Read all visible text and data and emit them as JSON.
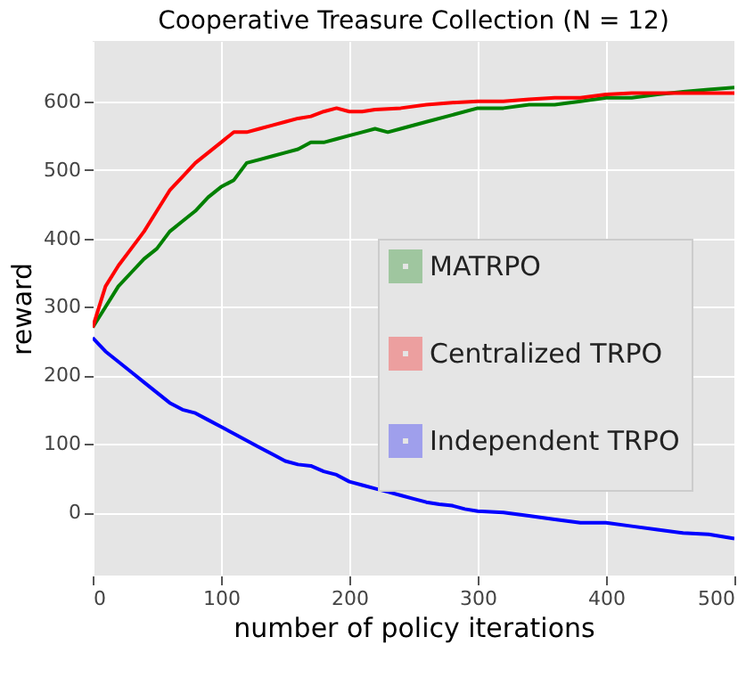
{
  "chart_data": {
    "type": "line",
    "title": "Cooperative Treasure Collection (N = 12)",
    "xlabel": "number of policy iterations",
    "ylabel": "reward",
    "xlim": [
      0,
      500
    ],
    "xticks": [
      0,
      100,
      200,
      300,
      400,
      500
    ],
    "ylim": [
      -92,
      688
    ],
    "yticks": [
      0,
      100,
      200,
      300,
      400,
      500,
      600
    ],
    "grid": true,
    "legend": "right",
    "marker": "none",
    "line_style": "solid",
    "series": [
      {
        "name": "MATRPO",
        "color": "#008000",
        "x": [
          0,
          5,
          10,
          20,
          30,
          40,
          50,
          60,
          70,
          80,
          90,
          100,
          110,
          120,
          130,
          140,
          150,
          160,
          170,
          180,
          190,
          200,
          210,
          220,
          230,
          240,
          260,
          280,
          300,
          320,
          340,
          360,
          380,
          400,
          420,
          440,
          460,
          480,
          500
        ],
        "values": [
          270,
          285,
          300,
          330,
          350,
          370,
          385,
          410,
          425,
          440,
          460,
          475,
          485,
          510,
          515,
          520,
          525,
          530,
          540,
          540,
          545,
          550,
          555,
          560,
          555,
          560,
          570,
          580,
          590,
          590,
          595,
          595,
          600,
          605,
          605,
          610,
          614,
          617,
          620
        ]
      },
      {
        "name": "Centralized TRPO",
        "color": "#ff0000",
        "x": [
          0,
          5,
          10,
          20,
          30,
          40,
          50,
          60,
          70,
          80,
          90,
          100,
          110,
          120,
          130,
          140,
          150,
          160,
          170,
          180,
          190,
          200,
          210,
          220,
          240,
          260,
          280,
          300,
          320,
          340,
          360,
          380,
          400,
          420,
          440,
          460,
          480,
          500
        ],
        "values": [
          270,
          300,
          330,
          360,
          385,
          410,
          440,
          470,
          490,
          510,
          525,
          540,
          555,
          555,
          560,
          565,
          570,
          575,
          578,
          585,
          590,
          585,
          585,
          588,
          590,
          595,
          598,
          600,
          600,
          603,
          605,
          605,
          610,
          612,
          612,
          612,
          612,
          612
        ]
      },
      {
        "name": "Independent TRPO",
        "color": "#0000ff",
        "x": [
          0,
          5,
          10,
          20,
          30,
          40,
          50,
          60,
          70,
          80,
          90,
          100,
          110,
          120,
          130,
          140,
          150,
          160,
          170,
          180,
          190,
          200,
          210,
          220,
          230,
          240,
          250,
          260,
          270,
          280,
          290,
          300,
          320,
          340,
          360,
          380,
          400,
          420,
          440,
          460,
          480,
          500
        ],
        "values": [
          255,
          245,
          235,
          220,
          205,
          190,
          175,
          160,
          150,
          145,
          135,
          125,
          115,
          105,
          95,
          85,
          75,
          70,
          68,
          60,
          55,
          45,
          40,
          35,
          30,
          25,
          20,
          15,
          12,
          10,
          5,
          2,
          0,
          -5,
          -10,
          -15,
          -15,
          -20,
          -25,
          -30,
          -32,
          -38
        ]
      }
    ]
  }
}
